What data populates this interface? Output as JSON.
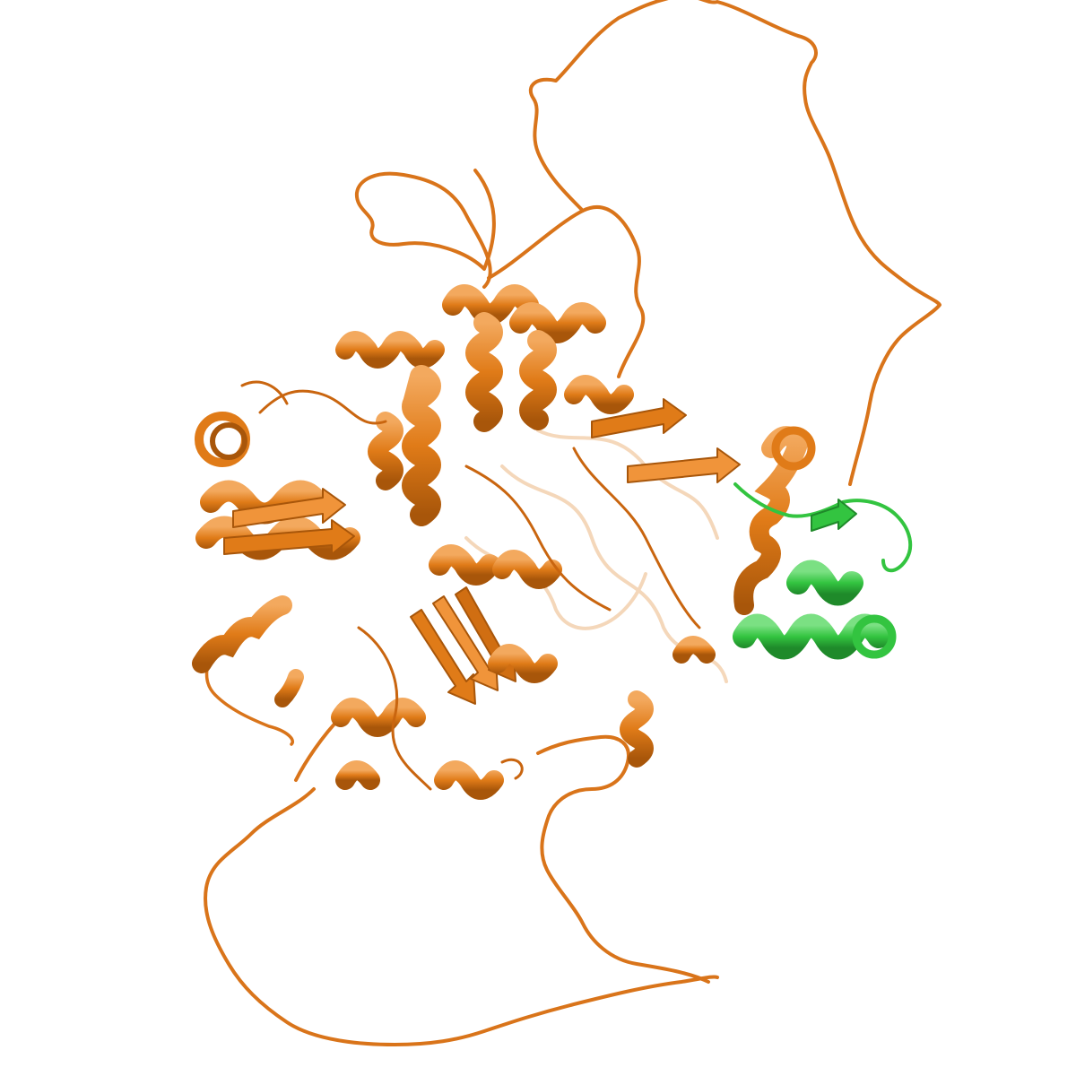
{
  "image": {
    "background": "#ffffff",
    "subject": "protein-cartoon-render",
    "chains": [
      {
        "id": "chain-main",
        "color": "#e07b18",
        "shade": "#a8560a",
        "light": "#f3a95e"
      },
      {
        "id": "chain-partner",
        "color": "#33c440",
        "shade": "#1f8a2a",
        "light": "#7be083"
      }
    ]
  }
}
